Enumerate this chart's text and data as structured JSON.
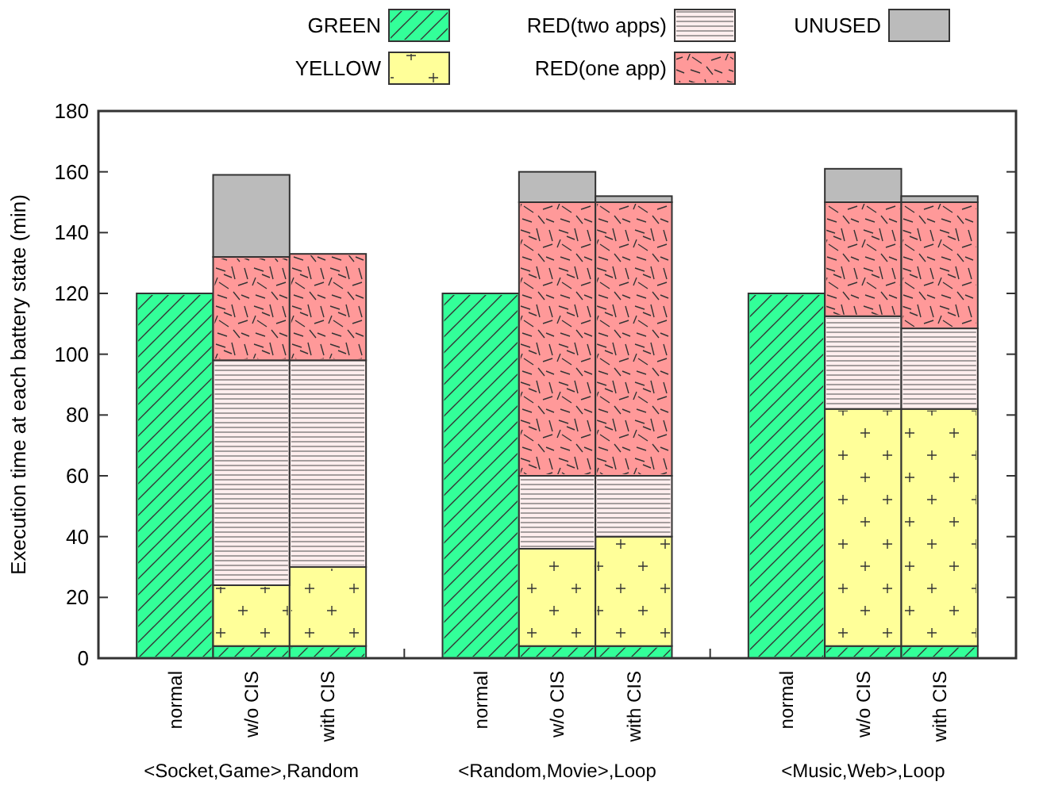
{
  "chart_data": {
    "type": "bar",
    "stacked": true,
    "ylabel": "Execution time at each battery state (min)",
    "categories": [
      "normal",
      "w/o CIS",
      "with CIS",
      null,
      "normal",
      "w/o CIS",
      "with CIS",
      null,
      "normal",
      "w/o CIS",
      "with CIS"
    ],
    "series": [
      {
        "name": "GREEN",
        "color": "#33ff99",
        "values": [
          120,
          4,
          4,
          null,
          120,
          4,
          4,
          null,
          120,
          4,
          4
        ]
      },
      {
        "name": "YELLOW",
        "color": "#ffff99",
        "values": [
          null,
          20,
          26,
          null,
          null,
          32,
          36,
          null,
          null,
          78,
          78
        ]
      },
      {
        "name": "RED(two apps)",
        "color": "#ffeeee",
        "values": [
          null,
          74,
          68,
          null,
          null,
          24,
          20,
          null,
          null,
          30.5,
          26.5
        ]
      },
      {
        "name": "RED(one app)",
        "color": "#ff9999",
        "values": [
          null,
          34,
          35,
          null,
          null,
          90,
          90,
          null,
          null,
          37.5,
          41.5
        ]
      },
      {
        "name": "UNUSED",
        "color": "#bbbbbb",
        "values": [
          null,
          27,
          0,
          null,
          null,
          10,
          2,
          null,
          null,
          11,
          2
        ]
      }
    ],
    "ylim": [
      0,
      180
    ],
    "yticks": [
      0,
      20,
      40,
      60,
      80,
      100,
      120,
      140,
      160,
      180
    ],
    "annotations": [
      "<Socket,Game>,Random",
      "<Random,Movie>,Loop",
      "<Music,Web>,Loop"
    ],
    "legend": "top",
    "grid": false
  }
}
